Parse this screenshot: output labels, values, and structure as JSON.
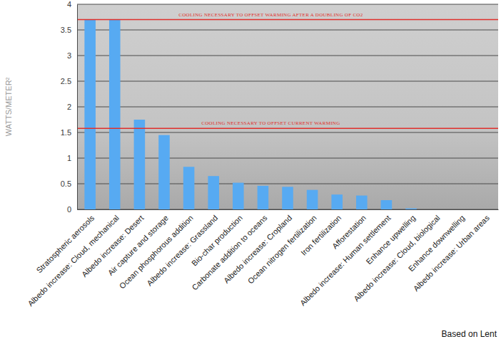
{
  "chart_data": {
    "type": "bar",
    "y_label": "WATTS/METER²",
    "categories": [
      "Stratospheric aerosols",
      "Albedo increase: Cloud, mechanical",
      "Albedo increase: Desert",
      "Air capture and storage",
      "Ocean phosphorous addition",
      "Albedo increase: Grassland",
      "Bio-char production",
      "Carbonate addition to oceans",
      "Albedo increase: Cropland",
      "Ocean nitrogen fertilization",
      "Iron fertilization",
      "Afforestation",
      "Albedo increase: Human settlement",
      "Enhance upwelling",
      "Albedo increase: Cloud, biological",
      "Enhance downwelling",
      "Albedo increase: Urban areas"
    ],
    "values": [
      3.7,
      3.7,
      1.75,
      1.45,
      0.83,
      0.65,
      0.52,
      0.46,
      0.44,
      0.38,
      0.29,
      0.27,
      0.18,
      0.02,
      0,
      0,
      0
    ],
    "color": "#57aaf2",
    "ylim": [
      0,
      4
    ],
    "yticks": [
      0,
      0.5,
      1,
      1.5,
      2,
      2.5,
      3,
      3.5,
      4
    ],
    "grid": true,
    "annotations": [
      {
        "text": "COOLING NECESSARY TO OFFSET WARMING AFTER A DOUBLING OF CO2",
        "value": 3.7,
        "color": "#e0302c"
      },
      {
        "text": "COOLING NECESSARY TO OFFSET CURRENT WARMING",
        "value": 1.58,
        "color": "#e0302c"
      }
    ],
    "caption": "Based on Lent"
  }
}
